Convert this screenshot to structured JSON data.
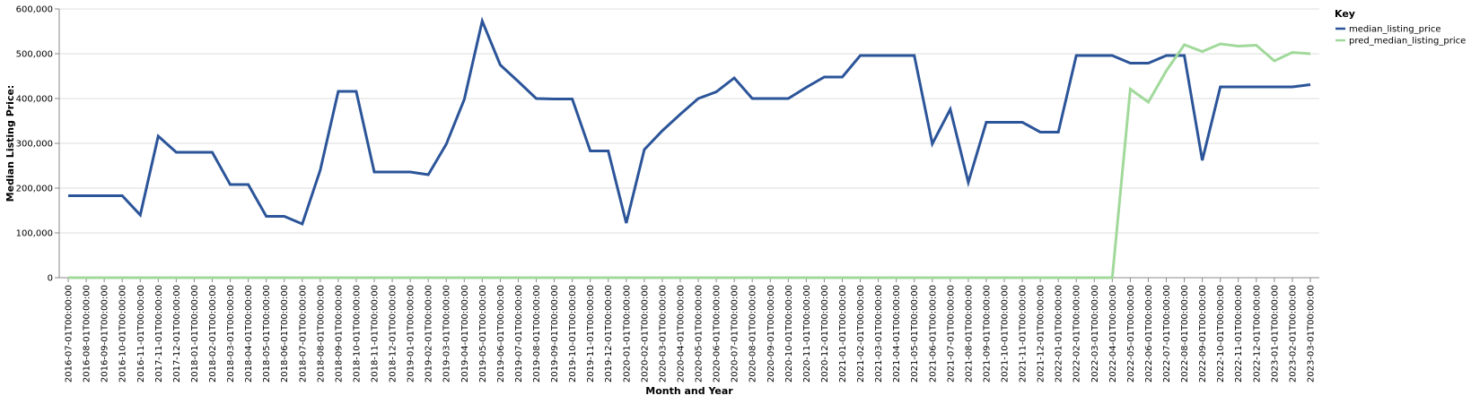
{
  "chart_data": {
    "type": "line",
    "xlabel": "Month and Year",
    "ylabel": "Median Listing Price:",
    "ylim": [
      0,
      600000
    ],
    "y_ticks": [
      "0",
      "100,000",
      "200,000",
      "300,000",
      "400,000",
      "500,000",
      "600,000"
    ],
    "grid": true,
    "legend": {
      "title": "Key",
      "placement": "top-right"
    },
    "x": [
      "2016-07-01T00:00:00",
      "2016-08-01T00:00:00",
      "2016-09-01T00:00:00",
      "2016-10-01T00:00:00",
      "2016-11-01T00:00:00",
      "2017-11-01T00:00:00",
      "2017-12-01T00:00:00",
      "2018-01-01T00:00:00",
      "2018-02-01T00:00:00",
      "2018-03-01T00:00:00",
      "2018-04-01T00:00:00",
      "2018-05-01T00:00:00",
      "2018-06-01T00:00:00",
      "2018-07-01T00:00:00",
      "2018-08-01T00:00:00",
      "2018-09-01T00:00:00",
      "2018-10-01T00:00:00",
      "2018-11-01T00:00:00",
      "2018-12-01T00:00:00",
      "2019-01-01T00:00:00",
      "2019-02-01T00:00:00",
      "2019-03-01T00:00:00",
      "2019-04-01T00:00:00",
      "2019-05-01T00:00:00",
      "2019-06-01T00:00:00",
      "2019-07-01T00:00:00",
      "2019-08-01T00:00:00",
      "2019-09-01T00:00:00",
      "2019-10-01T00:00:00",
      "2019-11-01T00:00:00",
      "2019-12-01T00:00:00",
      "2020-01-01T00:00:00",
      "2020-02-01T00:00:00",
      "2020-03-01T00:00:00",
      "2020-04-01T00:00:00",
      "2020-05-01T00:00:00",
      "2020-06-01T00:00:00",
      "2020-07-01T00:00:00",
      "2020-08-01T00:00:00",
      "2020-09-01T00:00:00",
      "2020-10-01T00:00:00",
      "2020-11-01T00:00:00",
      "2020-12-01T00:00:00",
      "2021-01-01T00:00:00",
      "2021-02-01T00:00:00",
      "2021-03-01T00:00:00",
      "2021-04-01T00:00:00",
      "2021-05-01T00:00:00",
      "2021-06-01T00:00:00",
      "2021-07-01T00:00:00",
      "2021-08-01T00:00:00",
      "2021-09-01T00:00:00",
      "2021-10-01T00:00:00",
      "2021-11-01T00:00:00",
      "2021-12-01T00:00:00",
      "2022-01-01T00:00:00",
      "2022-02-01T00:00:00",
      "2022-03-01T00:00:00",
      "2022-04-01T00:00:00",
      "2022-05-01T00:00:00",
      "2022-06-01T00:00:00",
      "2022-07-01T00:00:00",
      "2022-08-01T00:00:00",
      "2022-09-01T00:00:00",
      "2022-10-01T00:00:00",
      "2022-11-01T00:00:00",
      "2022-12-01T00:00:00",
      "2023-01-01T00:00:00",
      "2023-02-01T00:00:00",
      "2023-03-01T00:00:00"
    ],
    "series": [
      {
        "name": "median_listing_price",
        "color": "#2b5499",
        "values": [
          183000,
          183000,
          183000,
          183000,
          140000,
          316000,
          280000,
          280000,
          280000,
          208000,
          208000,
          137000,
          137000,
          120000,
          240000,
          416000,
          416000,
          236000,
          236000,
          236000,
          230000,
          298000,
          398000,
          573000,
          475000,
          438000,
          400000,
          399000,
          399000,
          283000,
          283000,
          122000,
          286000,
          328000,
          365000,
          400000,
          415000,
          446000,
          400000,
          400000,
          400000,
          425000,
          448000,
          448000,
          496000,
          496000,
          496000,
          496000,
          299000,
          376000,
          213000,
          347000,
          347000,
          347000,
          325000,
          325000,
          496000,
          496000,
          496000,
          479000,
          479000,
          496000,
          496000,
          262000,
          426000,
          426000,
          426000,
          426000,
          426000,
          431000
        ]
      },
      {
        "name": "pred_median_listing_price",
        "color": "#a1d99b",
        "values": [
          0,
          0,
          0,
          0,
          0,
          0,
          0,
          0,
          0,
          0,
          0,
          0,
          0,
          0,
          0,
          0,
          0,
          0,
          0,
          0,
          0,
          0,
          0,
          0,
          0,
          0,
          0,
          0,
          0,
          0,
          0,
          0,
          0,
          0,
          0,
          0,
          0,
          0,
          0,
          0,
          0,
          0,
          0,
          0,
          0,
          0,
          0,
          0,
          0,
          0,
          0,
          0,
          0,
          0,
          0,
          0,
          0,
          0,
          0,
          421000,
          392000,
          462000,
          520000,
          505000,
          522000,
          517000,
          519000,
          484000,
          503000,
          500000
        ]
      }
    ]
  }
}
